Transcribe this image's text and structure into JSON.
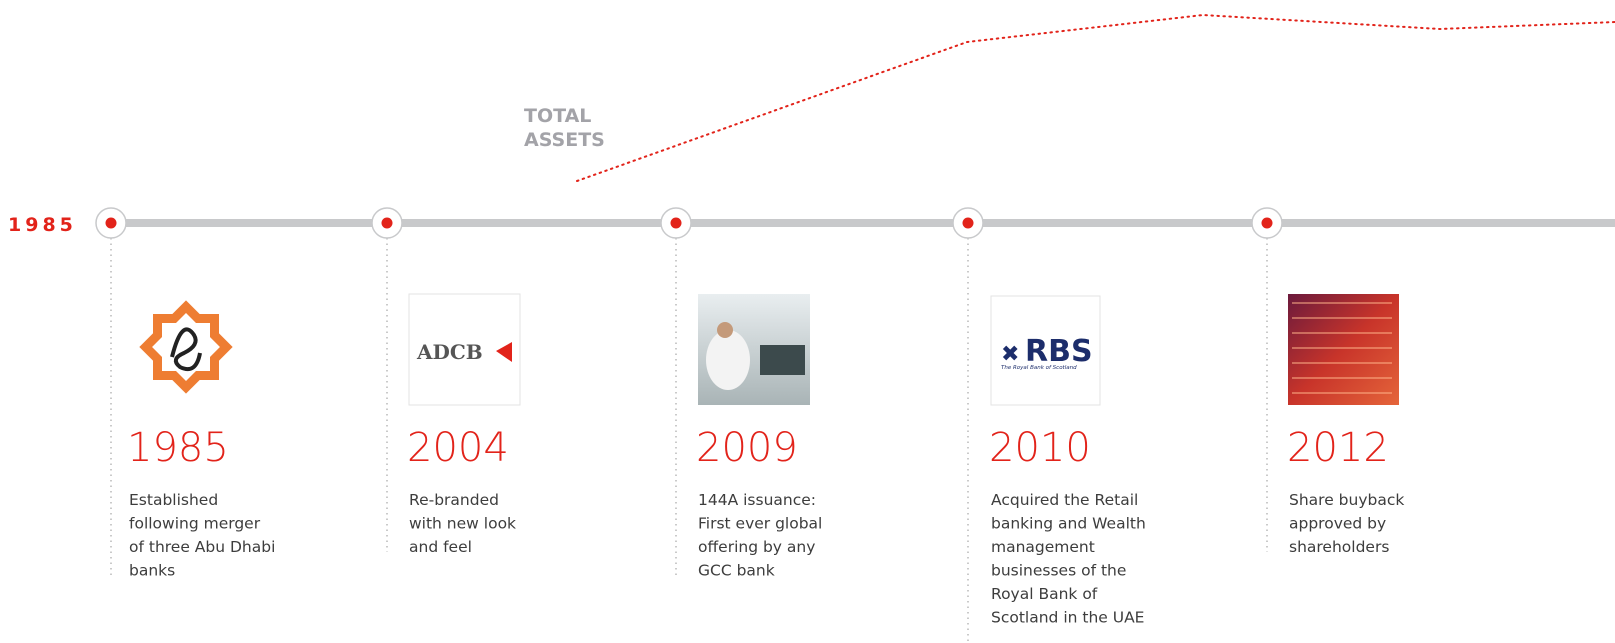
{
  "start_label": "1985",
  "trend_label": [
    "TOTAL",
    "ASSETS"
  ],
  "events": [
    {
      "year": "1985",
      "lines": [
        "Established",
        "following merger",
        "of three Abu Dhabi",
        "banks"
      ]
    },
    {
      "year": "2004",
      "lines": [
        "Re-branded",
        "with new look",
        "and feel"
      ],
      "logo_text": "ADCB"
    },
    {
      "year": "2009",
      "lines": [
        "144A issuance:",
        "First ever global",
        "offering by any",
        "GCC bank"
      ]
    },
    {
      "year": "2010",
      "lines": [
        "Acquired the Retail",
        "banking and Wealth",
        "management",
        "businesses of the",
        "Royal Bank of",
        "Scotland in the UAE"
      ],
      "logo_text": "RBS",
      "logo_subtext": "The Royal Bank of Scotland"
    },
    {
      "year": "2012",
      "lines": [
        "Share buyback",
        "approved by",
        "shareholders"
      ]
    }
  ]
}
